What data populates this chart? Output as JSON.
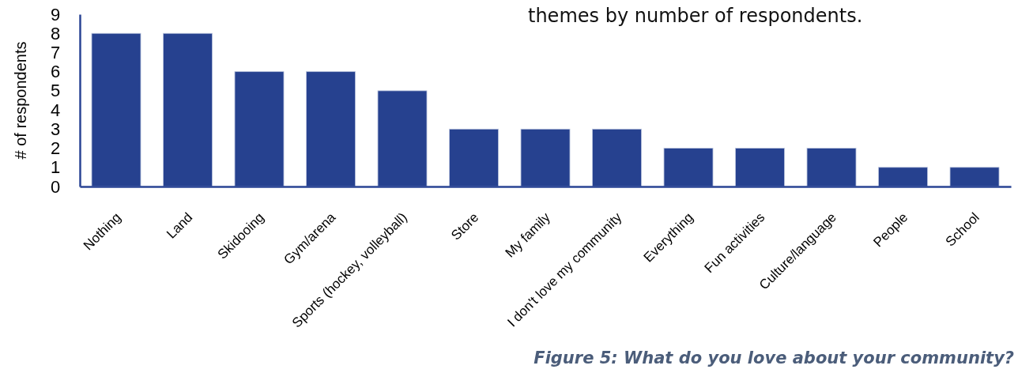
{
  "chart_data": {
    "type": "bar",
    "categories": [
      "Nothing",
      "Land",
      "Skidooing",
      "Gym/arena",
      "Sports (hockey, volleyball)",
      "Store",
      "My family",
      "I don't love my community",
      "Everything",
      "Fun activities",
      "Culture/language",
      "People",
      "School"
    ],
    "values": [
      8,
      8,
      6,
      6,
      5,
      3,
      3,
      3,
      2,
      2,
      2,
      1,
      1
    ],
    "color": "#26418f",
    "ylabel": "# of respondents",
    "ylim": [
      0,
      9
    ],
    "yticks": [
      0,
      1,
      2,
      3,
      4,
      5,
      6,
      7,
      8,
      9
    ],
    "grid": false,
    "annotations": [
      "themes by number of respondents.",
      "Figure 5: What do you love about your community?"
    ]
  }
}
